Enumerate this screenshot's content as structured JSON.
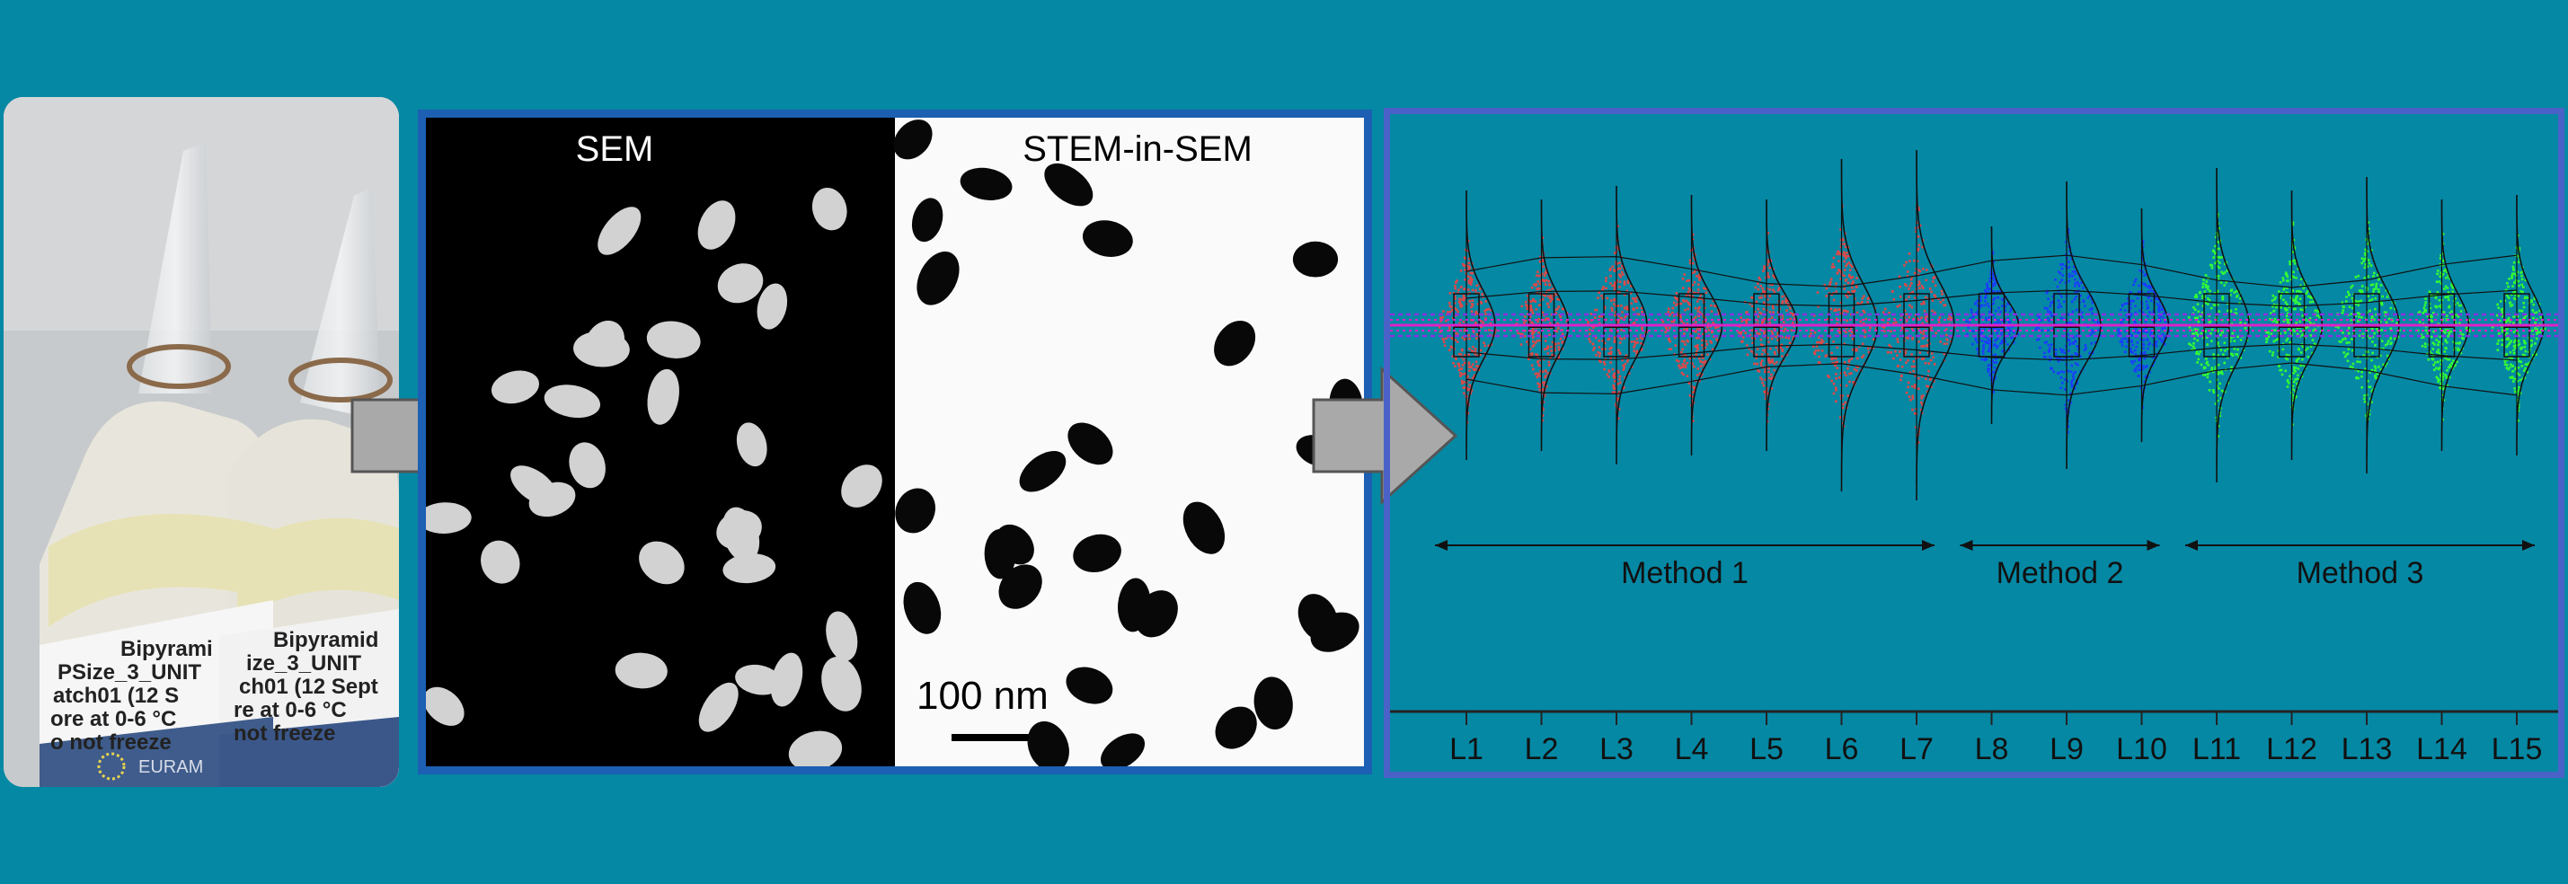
{
  "colors": {
    "background": "#0588a4",
    "sem_frame": "#1c5fb3",
    "plot_frame": "#4a62c8",
    "arrow_fill": "#a9a9a9",
    "method1": "#e04848",
    "method2": "#1a3cff",
    "method3": "#33ff33",
    "reference_line": "#e020c8"
  },
  "photo": {
    "label_lines_vial1": [
      "Bipyrami",
      "PSize_3_UNIT",
      "atch01 (12 S",
      "ore at 0-6 °C",
      "o not freeze"
    ],
    "label_lines_vial2": [
      "Bipyramid",
      "ize_3_UNIT",
      "ch01 (12 Sept",
      "re at 0-6 °C",
      "not freeze"
    ],
    "logo_text": "EURAM"
  },
  "microscopy": {
    "left_label": "SEM",
    "right_label": "STEM-in-SEM",
    "scale_label": "100 nm"
  },
  "chart_data": {
    "type": "violin",
    "categories": [
      "L1",
      "L2",
      "L3",
      "L4",
      "L5",
      "L6",
      "L7",
      "L8",
      "L9",
      "L10",
      "L11",
      "L12",
      "L13",
      "L14",
      "L15"
    ],
    "groups": [
      {
        "name": "Method 1",
        "labs": [
          "L1",
          "L2",
          "L3",
          "L4",
          "L5",
          "L6",
          "L7"
        ],
        "color": "#e04848"
      },
      {
        "name": "Method 2",
        "labs": [
          "L8",
          "L9",
          "L10"
        ],
        "color": "#1a3cff"
      },
      {
        "name": "Method 3",
        "labs": [
          "L11",
          "L12",
          "L13",
          "L14",
          "L15"
        ],
        "color": "#33ff33"
      }
    ],
    "grid": false,
    "legend": "none"
  }
}
